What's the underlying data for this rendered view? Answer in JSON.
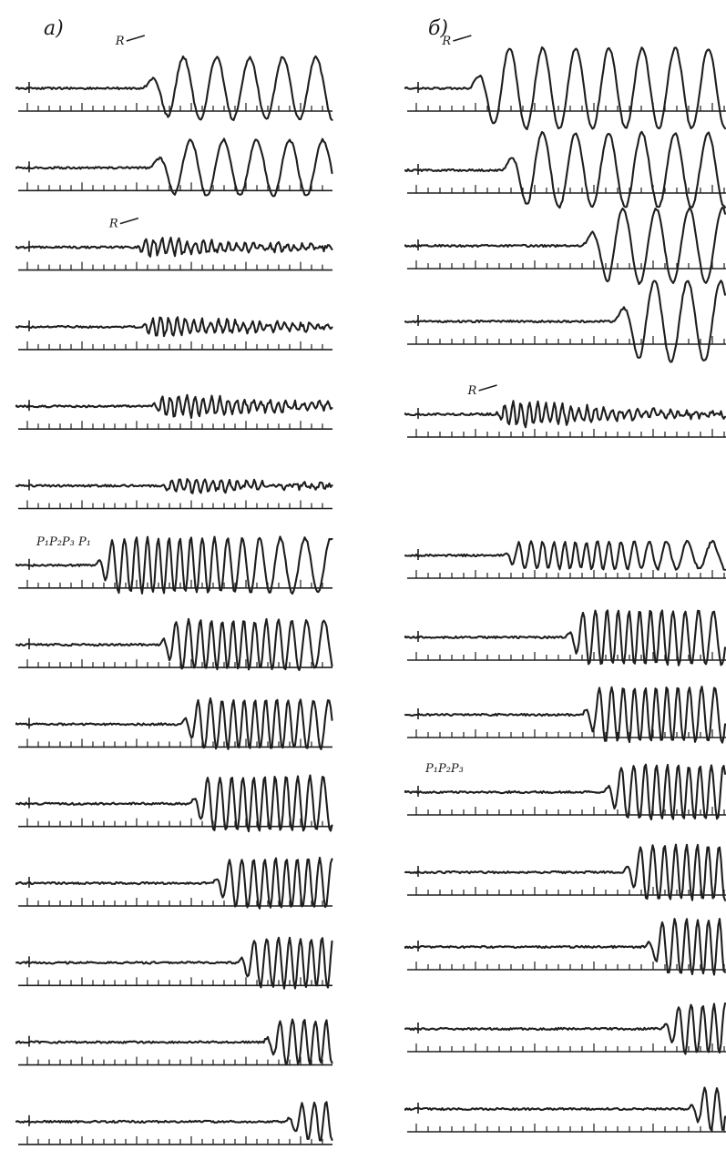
{
  "figure": {
    "panels": [
      {
        "id": "a",
        "label": "a)",
        "traces": [
          {
            "label": "R",
            "type": "slow",
            "onset": 0.4,
            "amp": 1.0
          },
          {
            "label": "",
            "type": "slow",
            "onset": 0.42,
            "amp": 0.9
          },
          {
            "label": "R",
            "type": "fast",
            "onset": 0.38,
            "amp": 0.5
          },
          {
            "label": "",
            "type": "fast",
            "onset": 0.4,
            "amp": 0.6
          },
          {
            "label": "",
            "type": "fast",
            "onset": 0.43,
            "amp": 0.7
          },
          {
            "label": "",
            "type": "fast",
            "onset": 0.46,
            "amp": 0.4
          },
          {
            "label": "P₁P₂P₃ P₁",
            "type": "burst",
            "onset": 0.25,
            "amp": 1.0
          },
          {
            "label": "",
            "type": "burst",
            "onset": 0.45,
            "amp": 0.9
          },
          {
            "label": "",
            "type": "burst",
            "onset": 0.52,
            "amp": 0.9
          },
          {
            "label": "",
            "type": "burst",
            "onset": 0.55,
            "amp": 1.0
          },
          {
            "label": "",
            "type": "burst",
            "onset": 0.62,
            "amp": 0.9
          },
          {
            "label": "",
            "type": "burst",
            "onset": 0.7,
            "amp": 0.9
          },
          {
            "label": "",
            "type": "burst",
            "onset": 0.78,
            "amp": 0.8
          },
          {
            "label": "",
            "type": "burst",
            "onset": 0.85,
            "amp": 0.7
          }
        ]
      },
      {
        "id": "b",
        "label": "б)",
        "traces": [
          {
            "label": "R",
            "type": "slow",
            "onset": 0.2,
            "amp": 1.3
          },
          {
            "label": "",
            "type": "slow",
            "onset": 0.3,
            "amp": 1.2
          },
          {
            "label": "",
            "type": "slow",
            "onset": 0.55,
            "amp": 1.2
          },
          {
            "label": "",
            "type": "slow",
            "onset": 0.65,
            "amp": 1.3
          },
          {
            "label": "R",
            "type": "fast",
            "onset": 0.28,
            "amp": 0.8
          },
          {
            "label": "",
            "type": "burst",
            "onset": 0.3,
            "amp": 0.5
          },
          {
            "label": "",
            "type": "burst",
            "onset": 0.5,
            "amp": 1.0
          },
          {
            "label": "",
            "type": "burst",
            "onset": 0.55,
            "amp": 1.0
          },
          {
            "label": "P₁P₂P₃",
            "type": "burst",
            "onset": 0.62,
            "amp": 1.0
          },
          {
            "label": "",
            "type": "burst",
            "onset": 0.68,
            "amp": 1.0
          },
          {
            "label": "",
            "type": "burst",
            "onset": 0.75,
            "amp": 1.0
          },
          {
            "label": "",
            "type": "burst",
            "onset": 0.8,
            "amp": 0.9
          },
          {
            "label": "",
            "type": "burst",
            "onset": 0.88,
            "amp": 0.8
          }
        ]
      }
    ]
  }
}
